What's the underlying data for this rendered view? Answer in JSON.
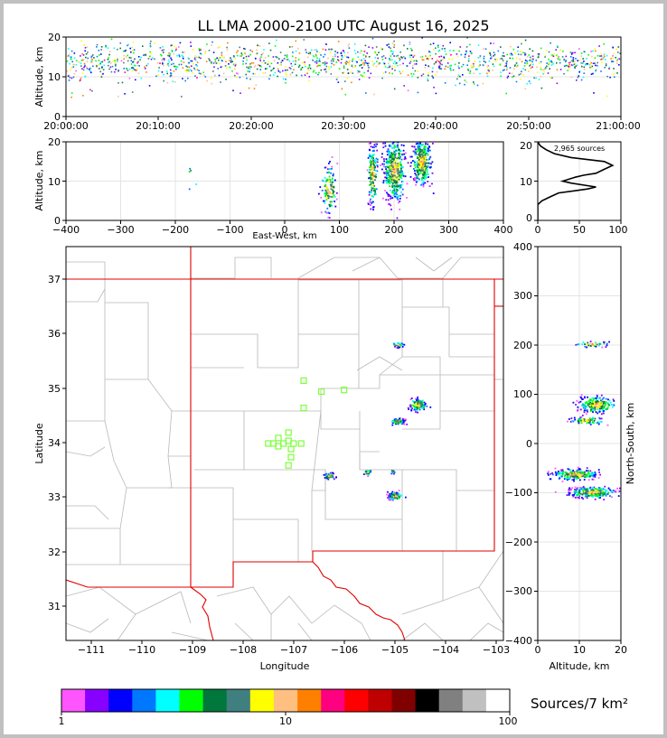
{
  "title": "LL LMA 2000-2100 UTC August 16, 2025",
  "chart_data": [
    {
      "type": "scatter",
      "panel": "altitude-time",
      "ylabel": "Altitude, km",
      "ylim": [
        0,
        20
      ],
      "yticks": [
        "0",
        "10",
        "20"
      ],
      "xticks": [
        "20:00:00",
        "20:10:00",
        "20:20:00",
        "20:30:00",
        "20:40:00",
        "20:50:00",
        "21:00:00"
      ],
      "xlim_minutes": [
        0,
        60
      ],
      "altitude_band_km": [
        5,
        20
      ],
      "grid": true
    },
    {
      "type": "scatter",
      "panel": "altitude-eastwest",
      "xlabel": "East-West, km",
      "ylabel": "Altitude, km",
      "xlim": [
        -400,
        400
      ],
      "ylim": [
        0,
        20
      ],
      "xticks": [
        "−400",
        "−300",
        "−200",
        "−100",
        "0",
        "100",
        "200",
        "300",
        "400"
      ],
      "yticks": [
        "0",
        "10",
        "20"
      ],
      "clusters": [
        {
          "x": 80,
          "z": 8,
          "xs": 12,
          "zs": 3,
          "n": 120
        },
        {
          "x": 160,
          "z": 12,
          "xs": 8,
          "zs": 4,
          "n": 160
        },
        {
          "x": 200,
          "z": 13,
          "xs": 16,
          "zs": 4,
          "n": 420
        },
        {
          "x": 250,
          "z": 15,
          "xs": 14,
          "zs": 3,
          "n": 320
        },
        {
          "x": -170,
          "z": 11,
          "xs": 10,
          "zs": 2,
          "n": 5
        }
      ],
      "grid": true
    },
    {
      "type": "line",
      "panel": "altitude-histogram",
      "annotation": "2,965 sources",
      "xlim": [
        0,
        100
      ],
      "ylim": [
        0,
        20
      ],
      "xticks": [
        "0",
        "50",
        "100"
      ],
      "yticks": [
        "0",
        "10",
        "20"
      ],
      "profile": [
        [
          0,
          0
        ],
        [
          0,
          4
        ],
        [
          5,
          5
        ],
        [
          15,
          6
        ],
        [
          25,
          7
        ],
        [
          60,
          8
        ],
        [
          70,
          8.5
        ],
        [
          40,
          9.5
        ],
        [
          30,
          10
        ],
        [
          45,
          11
        ],
        [
          55,
          11.5
        ],
        [
          70,
          12
        ],
        [
          80,
          13
        ],
        [
          90,
          14
        ],
        [
          80,
          15
        ],
        [
          40,
          16
        ],
        [
          20,
          17
        ],
        [
          10,
          18
        ],
        [
          3,
          19
        ],
        [
          0,
          20
        ]
      ]
    },
    {
      "type": "scatter",
      "panel": "plan-view-map",
      "xlabel": "Longitude",
      "ylabel": "Latitude",
      "xlim": [
        -111.5,
        -102.85
      ],
      "ylim": [
        30.4,
        37.6
      ],
      "xticks": [
        "−111",
        "−110",
        "−109",
        "−108",
        "−107",
        "−106",
        "−105",
        "−104",
        "−103"
      ],
      "yticks": [
        "31",
        "32",
        "33",
        "34",
        "35",
        "36",
        "37"
      ],
      "stations": [
        [
          -107.1,
          34.2
        ],
        [
          -107.3,
          34.1
        ],
        [
          -107.1,
          34.05
        ],
        [
          -107.4,
          34.0
        ],
        [
          -107.2,
          34.0
        ],
        [
          -107.0,
          34.0
        ],
        [
          -106.85,
          34.0
        ],
        [
          -107.3,
          33.95
        ],
        [
          -107.05,
          33.9
        ],
        [
          -107.05,
          33.75
        ],
        [
          -107.1,
          33.6
        ],
        [
          -106.8,
          35.15
        ],
        [
          -106.45,
          34.95
        ],
        [
          -106.0,
          34.98
        ],
        [
          -106.8,
          34.65
        ],
        [
          -107.5,
          34.0
        ]
      ],
      "clusters": [
        {
          "lon": -104.95,
          "lat": 35.82,
          "ls": 0.08,
          "as": 0.03,
          "n": 30
        },
        {
          "lon": -104.55,
          "lat": 34.72,
          "ls": 0.12,
          "as": 0.08,
          "n": 120
        },
        {
          "lon": -104.95,
          "lat": 34.42,
          "ls": 0.1,
          "as": 0.04,
          "n": 80
        },
        {
          "lon": -106.3,
          "lat": 33.42,
          "ls": 0.08,
          "as": 0.04,
          "n": 40
        },
        {
          "lon": -105.55,
          "lat": 33.48,
          "ls": 0.05,
          "as": 0.04,
          "n": 25
        },
        {
          "lon": -105.0,
          "lat": 33.05,
          "ls": 0.1,
          "as": 0.05,
          "n": 90
        },
        {
          "lon": -105.05,
          "lat": 33.5,
          "ls": 0.03,
          "as": 0.03,
          "n": 10
        }
      ]
    },
    {
      "type": "scatter",
      "panel": "northsouth-altitude",
      "xlabel": "Altitude, km",
      "ylabel": "North-South, km",
      "xlim": [
        0,
        20
      ],
      "ylim": [
        -400,
        400
      ],
      "xticks": [
        "0",
        "10",
        "20"
      ],
      "yticks": [
        "−400",
        "−300",
        "−200",
        "−100",
        "0",
        "100",
        "200",
        "300",
        "400"
      ],
      "clusters": [
        {
          "z": 13,
          "y": 203,
          "zs": 3,
          "ys": 4,
          "n": 40
        },
        {
          "z": 14,
          "y": 80,
          "zs": 3,
          "ys": 12,
          "n": 220
        },
        {
          "z": 12,
          "y": 48,
          "zs": 3,
          "ys": 5,
          "n": 80
        },
        {
          "z": 9,
          "y": -62,
          "zs": 4,
          "ys": 8,
          "n": 220
        },
        {
          "z": 13,
          "y": -98,
          "zs": 4,
          "ys": 8,
          "n": 260
        }
      ],
      "grid": true
    }
  ],
  "colorbar": {
    "label": "Sources/7 km²",
    "ticks": [
      "1",
      "10",
      "100"
    ],
    "colors": [
      "#ff55ff",
      "#8800ff",
      "#0000ff",
      "#0077ff",
      "#00ffff",
      "#00ff00",
      "#00773b",
      "#3f7f7f",
      "#ffff00",
      "#ffbf80",
      "#ff8000",
      "#ff0080",
      "#ff0000",
      "#bf0000",
      "#800000",
      "#000000",
      "#808080",
      "#c0c0c0",
      "#ffffff"
    ]
  },
  "map_colors": {
    "state_border": "#e00000",
    "county_border": "#b0b0b0",
    "station": "#7cff3a"
  }
}
